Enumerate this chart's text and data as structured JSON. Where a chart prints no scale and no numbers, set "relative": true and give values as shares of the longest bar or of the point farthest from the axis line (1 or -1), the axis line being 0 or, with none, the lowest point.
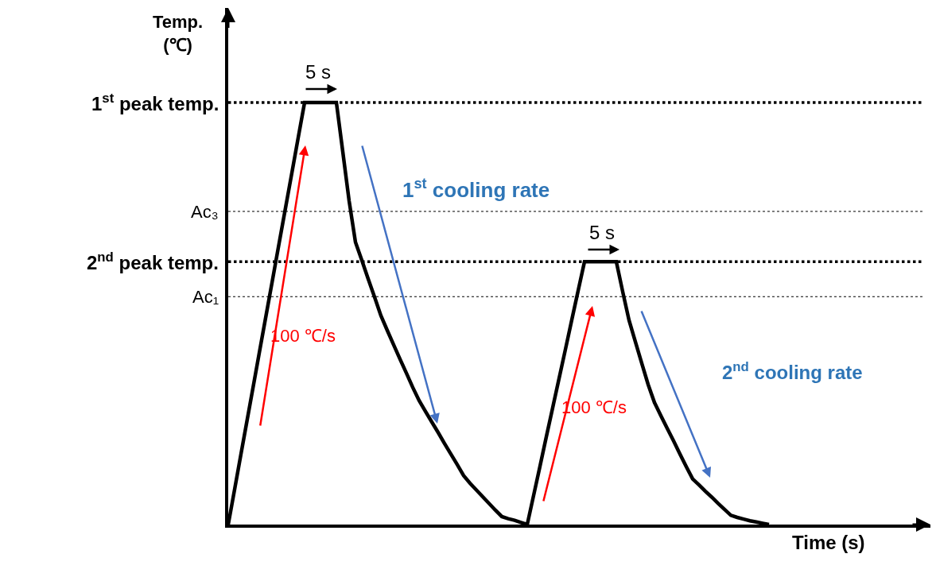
{
  "chart_data": {
    "type": "line",
    "relative": true,
    "xlabel": "Time (s)",
    "ylabel": "Temp.\n(℃)",
    "categories": [
      null,
      null,
      null,
      null,
      null,
      null,
      null,
      null,
      null,
      null,
      null,
      null,
      null,
      null,
      null,
      null,
      null,
      null,
      null,
      null,
      null,
      null,
      null,
      null,
      null,
      null,
      null,
      null,
      null,
      null,
      null,
      null,
      null,
      null,
      null,
      null,
      null,
      null,
      null,
      null,
      null,
      null,
      null,
      null,
      null,
      null,
      null,
      null,
      null,
      null,
      null,
      null,
      null,
      null,
      null,
      null,
      null,
      null,
      null,
      null,
      null,
      null,
      null,
      null,
      null,
      null,
      null,
      null,
      null,
      null,
      null,
      null,
      null,
      null,
      null,
      null,
      null,
      null,
      null,
      null,
      null,
      null,
      null,
      null,
      null,
      null
    ],
    "series": [
      {
        "color": "#000000",
        "values": [
          0,
          0.083,
          0.167,
          0.25,
          0.333,
          0.417,
          0.5,
          0.583,
          0.667,
          0.75,
          0.833,
          0.917,
          1,
          1,
          1,
          1,
          1,
          1,
          0.884,
          0.767,
          0.669,
          0.626,
          0.582,
          0.539,
          0.495,
          0.46,
          0.426,
          0.392,
          0.359,
          0.325,
          0.294,
          0.268,
          0.243,
          0.218,
          0.192,
          0.167,
          0.142,
          0.116,
          0.098,
          0.082,
          0.066,
          0.05,
          0.034,
          0.019,
          0.014,
          0.01,
          0.005,
          0,
          0.069,
          0.138,
          0.208,
          0.277,
          0.346,
          0.415,
          0.485,
          0.554,
          0.623,
          0.623,
          0.623,
          0.623,
          0.623,
          0.623,
          0.552,
          0.484,
          0.433,
          0.382,
          0.332,
          0.289,
          0.258,
          0.228,
          0.198,
          0.167,
          0.137,
          0.108,
          0.094,
          0.079,
          0.065,
          0.05,
          0.036,
          0.022,
          0.017,
          0.013,
          0.009,
          0.006,
          0.003,
          0
        ]
      }
    ],
    "ref_lines": [
      {
        "axis": "y",
        "value": 1,
        "label": "1$^{st}$ peak temp.",
        "color": "#000000",
        "line_style": "dotted"
      },
      {
        "axis": "y",
        "value": 0.742,
        "label": "Ac₃",
        "color": "#000000",
        "line_style": "dotted"
      },
      {
        "axis": "y",
        "value": 0.623,
        "label": "2$^{nd}$ peak temp.",
        "color": "#000000",
        "line_style": "dotted"
      },
      {
        "axis": "y",
        "value": 0.54,
        "label": "Ac₁",
        "color": "#000000",
        "line_style": "dotted"
      }
    ],
    "annotations": [
      "5 s",
      "5 s",
      "100 ℃/s",
      "100 ℃/s",
      "1$^{st}$ cooling rate",
      "2$^{nd}$ cooling rate"
    ],
    "marker": "none",
    "line_style": "solid"
  }
}
